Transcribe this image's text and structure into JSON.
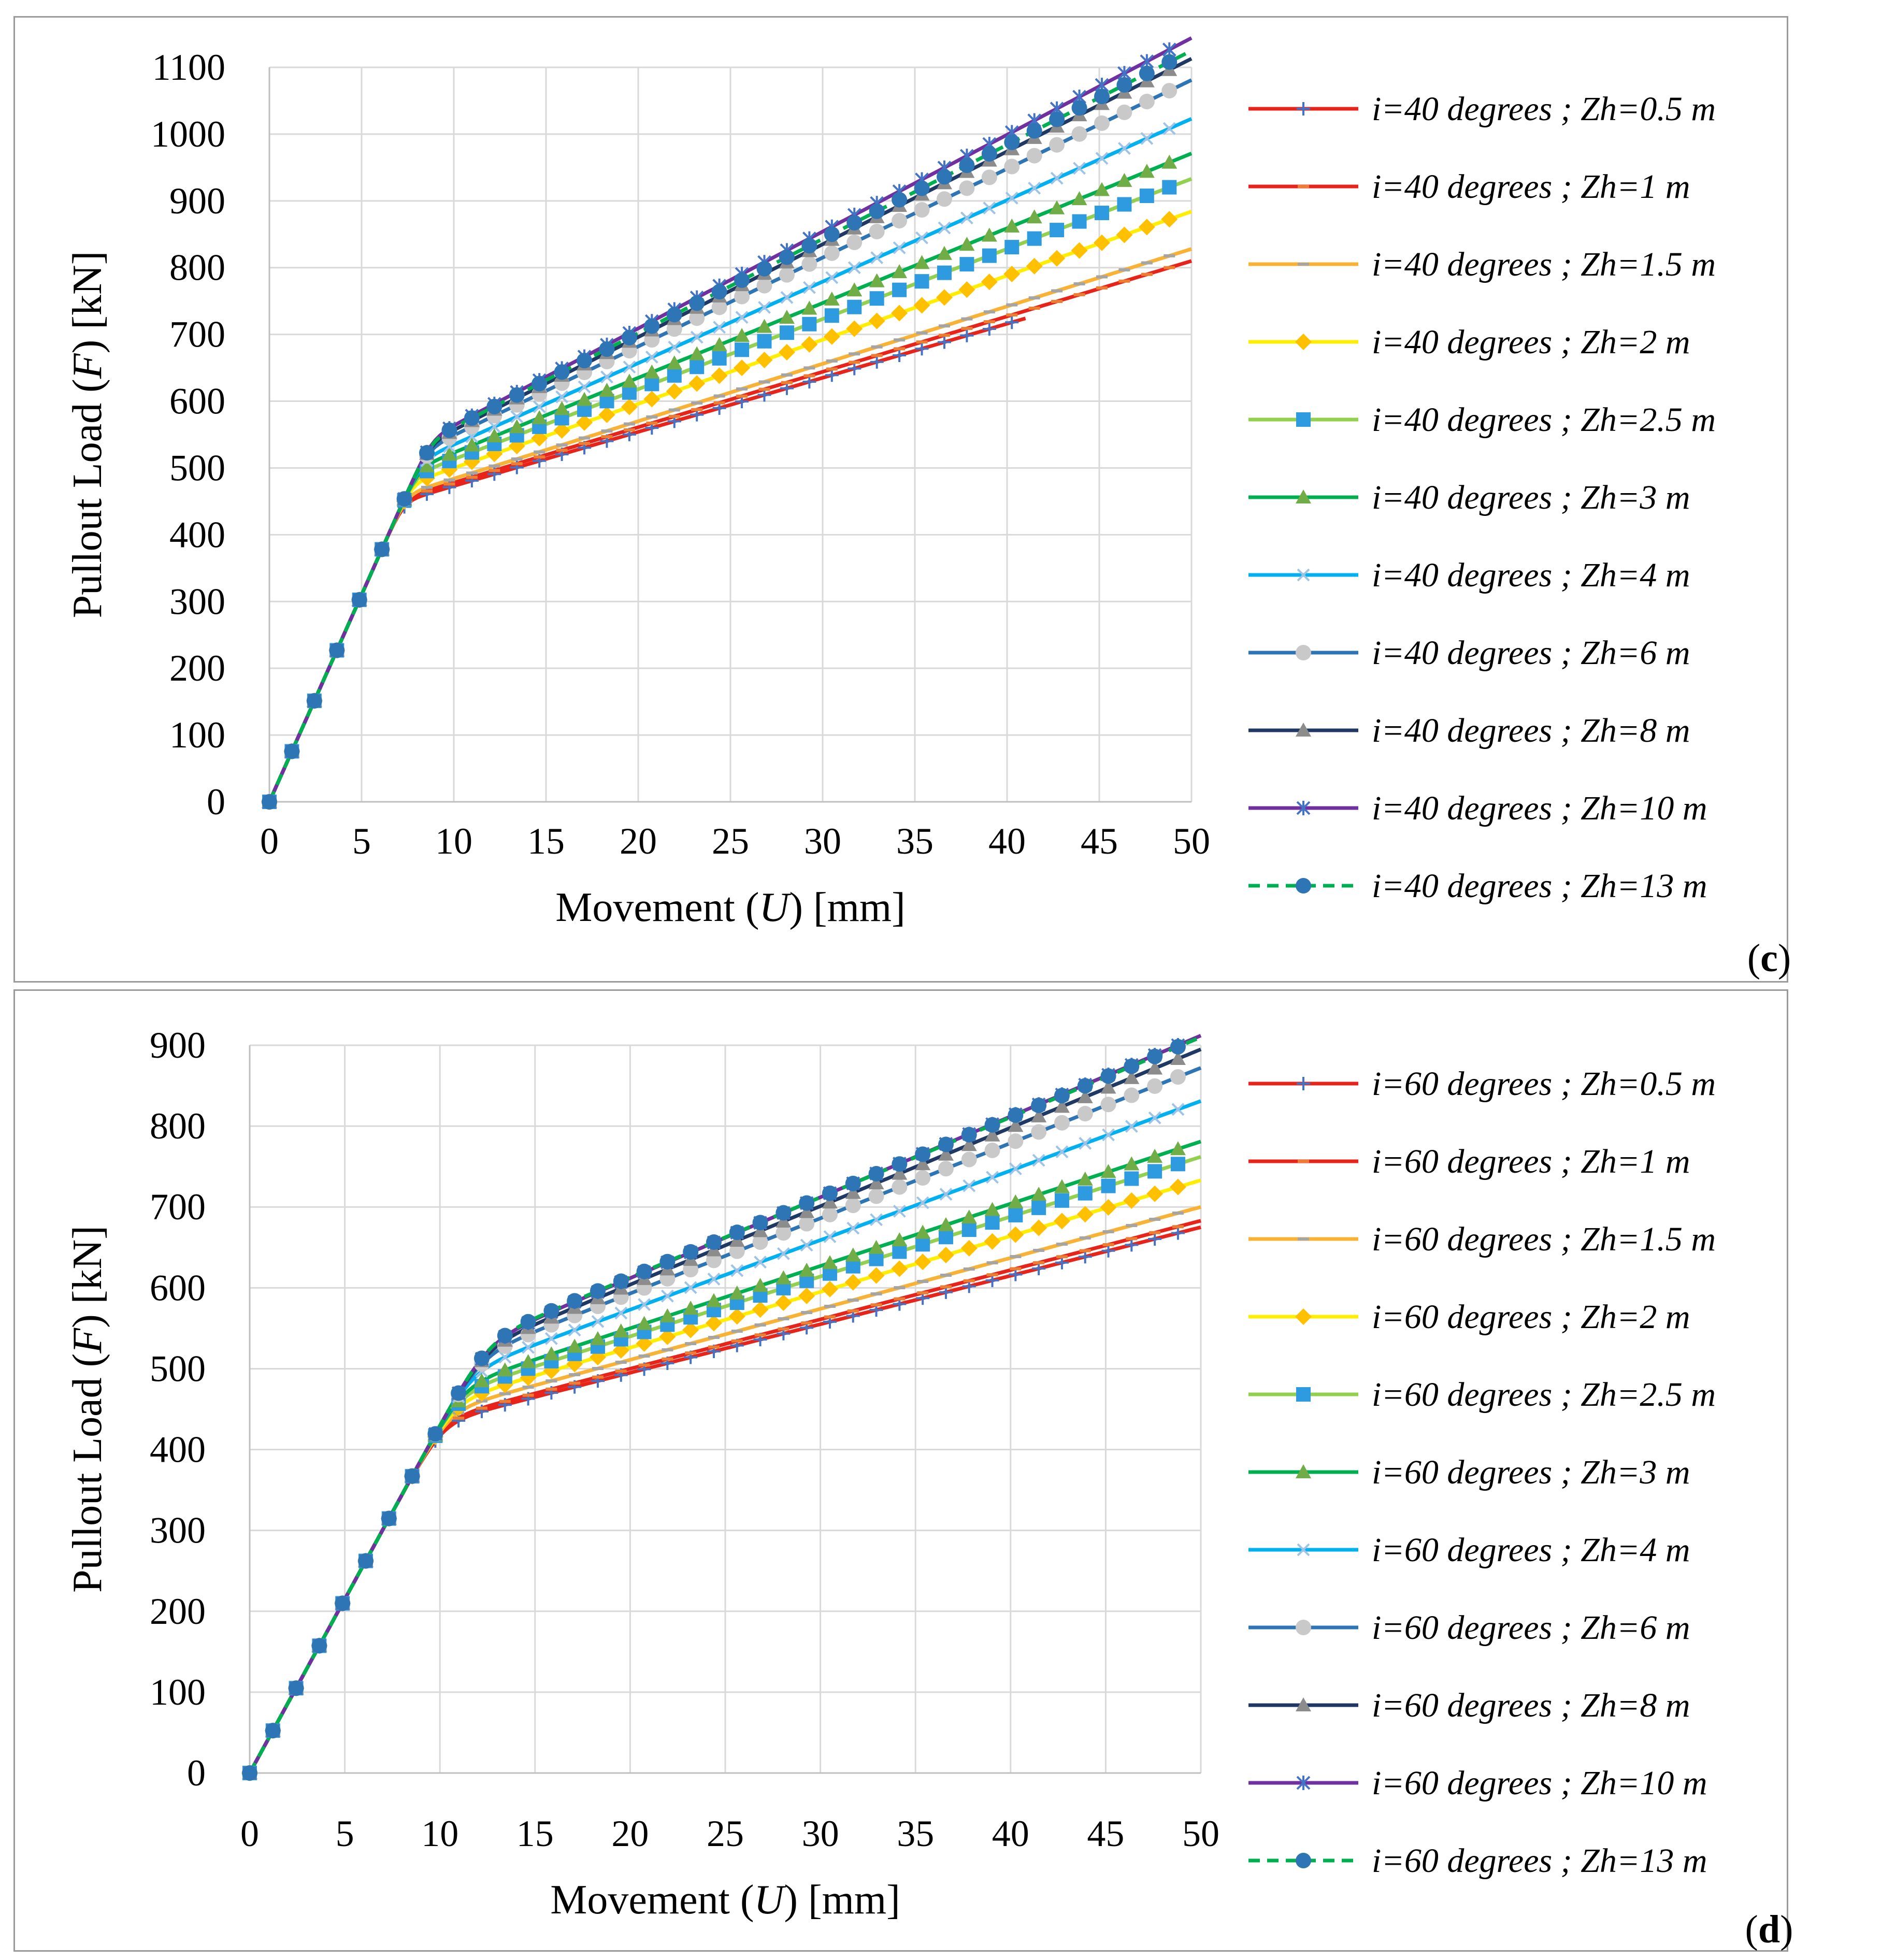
{
  "chart_data": [
    {
      "type": "line",
      "panel_label": "(c)",
      "panel_letter": "c",
      "xlabel": {
        "prefix": "Movement (",
        "symbol": "U",
        "suffix": ") [mm]"
      },
      "ylabel": {
        "prefix": "Pullout  Load (",
        "symbol": "F",
        "suffix": ") [kN]"
      },
      "xlim": [
        0,
        50
      ],
      "ylim": [
        0,
        1100
      ],
      "xticks": [
        0,
        5,
        10,
        15,
        20,
        25,
        30,
        35,
        40,
        45,
        50
      ],
      "yticks": [
        0,
        100,
        200,
        300,
        400,
        500,
        600,
        700,
        800,
        900,
        1000,
        1100
      ],
      "grid": true,
      "legend_position": "right",
      "curve_model": {
        "initial_slope_kN_per_mm": 62,
        "transition_sharpness": 0.04
      },
      "series": [
        {
          "name": "i=40 degrees ; Zh=0.5 m",
          "color": "#e8231a",
          "marker": "plus",
          "marker_color": "#4472c4",
          "dashed": false,
          "yield_load": 392,
          "post_yield_slope": 8.1,
          "x_end": 41.2
        },
        {
          "name": "i=40 degrees ; Zh=1 m",
          "color": "#e8231a",
          "marker": "dash",
          "marker_color": "#ed7d31",
          "dashed": false,
          "yield_load": 395,
          "post_yield_slope": 8.3,
          "x_end": 50
        },
        {
          "name": "i=40 degrees ; Zh=1.5 m",
          "color": "#f9b233",
          "marker": "dash",
          "marker_color": "#a5a5a5",
          "dashed": false,
          "yield_load": 398,
          "post_yield_slope": 8.6,
          "x_end": 50
        },
        {
          "name": "i=40 degrees ; Zh=2 m",
          "color": "#ffee00",
          "marker": "diamond",
          "marker_color": "#ffc000",
          "dashed": false,
          "yield_load": 404,
          "post_yield_slope": 9.6,
          "x_end": 50
        },
        {
          "name": "i=40 degrees ; Zh=2.5 m",
          "color": "#92d050",
          "marker": "square",
          "marker_color": "#2e9be0",
          "dashed": false,
          "yield_load": 408,
          "post_yield_slope": 10.5,
          "x_end": 50
        },
        {
          "name": "i=40 degrees ; Zh=3 m",
          "color": "#00b050",
          "marker": "triangle",
          "marker_color": "#70ad47",
          "dashed": false,
          "yield_load": 411,
          "post_yield_slope": 11.2,
          "x_end": 50
        },
        {
          "name": "i=40 degrees ; Zh=4 m",
          "color": "#00b0f0",
          "marker": "x",
          "marker_color": "#9dc3e6",
          "dashed": false,
          "yield_load": 413,
          "post_yield_slope": 12.2,
          "x_end": 50
        },
        {
          "name": "i=40 degrees ; Zh=6 m",
          "color": "#2e75b6",
          "marker": "circle",
          "marker_color": "#c9c9c9",
          "dashed": false,
          "yield_load": 416,
          "post_yield_slope": 13.3,
          "x_end": 50
        },
        {
          "name": "i=40 degrees ; Zh=8 m",
          "color": "#1f3864",
          "marker": "triangle",
          "marker_color": "#8c8c8c",
          "dashed": false,
          "yield_load": 418,
          "post_yield_slope": 13.9,
          "x_end": 50
        },
        {
          "name": "i=40 degrees ; Zh=10 m",
          "color": "#7030a0",
          "marker": "star",
          "marker_color": "#4472c4",
          "dashed": false,
          "yield_load": 419,
          "post_yield_slope": 14.5,
          "x_end": 50
        },
        {
          "name": "i=40 degrees ; Zh=13 m",
          "color": "#00b050",
          "marker": "circle",
          "marker_color": "#2e75b6",
          "dashed": true,
          "yield_load": 420,
          "post_yield_slope": 14.1,
          "x_end": 50
        }
      ]
    },
    {
      "type": "line",
      "panel_label": "(d)",
      "panel_letter": "d",
      "xlabel": {
        "prefix": "Movement (",
        "symbol": "U",
        "suffix": ") [mm]"
      },
      "ylabel": {
        "prefix": "Pullout  Load (",
        "symbol": "F",
        "suffix": ") [kN]"
      },
      "xlim": [
        0,
        50
      ],
      "ylim": [
        0,
        900
      ],
      "xticks": [
        0,
        5,
        10,
        15,
        20,
        25,
        30,
        35,
        40,
        45,
        50
      ],
      "yticks": [
        0,
        100,
        200,
        300,
        400,
        500,
        600,
        700,
        800,
        900
      ],
      "grid": true,
      "legend_position": "right",
      "curve_model": {
        "initial_slope_kN_per_mm": 43,
        "transition_sharpness": 0.06
      },
      "series": [
        {
          "name": "i=60 degrees ; Zh=0.5 m",
          "color": "#e8231a",
          "marker": "plus",
          "marker_color": "#4472c4",
          "dashed": false,
          "yield_load": 375,
          "post_yield_slope": 6.0,
          "x_end": 50
        },
        {
          "name": "i=60 degrees ; Zh=1 m",
          "color": "#e8231a",
          "marker": "dash",
          "marker_color": "#ed7d31",
          "dashed": false,
          "yield_load": 378,
          "post_yield_slope": 6.1,
          "x_end": 50
        },
        {
          "name": "i=60 degrees ; Zh=1.5 m",
          "color": "#f9b233",
          "marker": "dash",
          "marker_color": "#a5a5a5",
          "dashed": false,
          "yield_load": 385,
          "post_yield_slope": 6.3,
          "x_end": 50
        },
        {
          "name": "i=60 degrees ; Zh=2 m",
          "color": "#ffee00",
          "marker": "diamond",
          "marker_color": "#ffc000",
          "dashed": false,
          "yield_load": 388,
          "post_yield_slope": 6.9,
          "x_end": 50
        },
        {
          "name": "i=60 degrees ; Zh=2.5 m",
          "color": "#92d050",
          "marker": "square",
          "marker_color": "#2e9be0",
          "dashed": false,
          "yield_load": 392,
          "post_yield_slope": 7.4,
          "x_end": 50
        },
        {
          "name": "i=60 degrees ; Zh=3 m",
          "color": "#00b050",
          "marker": "triangle",
          "marker_color": "#70ad47",
          "dashed": false,
          "yield_load": 396,
          "post_yield_slope": 7.7,
          "x_end": 50
        },
        {
          "name": "i=60 degrees ; Zh=4 m",
          "color": "#00b0f0",
          "marker": "x",
          "marker_color": "#9dc3e6",
          "dashed": false,
          "yield_load": 401,
          "post_yield_slope": 8.6,
          "x_end": 50
        },
        {
          "name": "i=60 degrees ; Zh=6 m",
          "color": "#2e75b6",
          "marker": "circle",
          "marker_color": "#c9c9c9",
          "dashed": false,
          "yield_load": 407,
          "post_yield_slope": 9.3,
          "x_end": 50
        },
        {
          "name": "i=60 degrees ; Zh=8 m",
          "color": "#1f3864",
          "marker": "triangle",
          "marker_color": "#8c8c8c",
          "dashed": false,
          "yield_load": 410,
          "post_yield_slope": 9.7,
          "x_end": 50
        },
        {
          "name": "i=60 degrees ; Zh=10 m",
          "color": "#7030a0",
          "marker": "star",
          "marker_color": "#4472c4",
          "dashed": false,
          "yield_load": 412,
          "post_yield_slope": 10.0,
          "x_end": 50
        },
        {
          "name": "i=60 degrees ; Zh=13 m",
          "color": "#00b050",
          "marker": "circle",
          "marker_color": "#2e75b6",
          "dashed": true,
          "yield_load": 415,
          "post_yield_slope": 9.9,
          "x_end": 50
        }
      ]
    }
  ]
}
